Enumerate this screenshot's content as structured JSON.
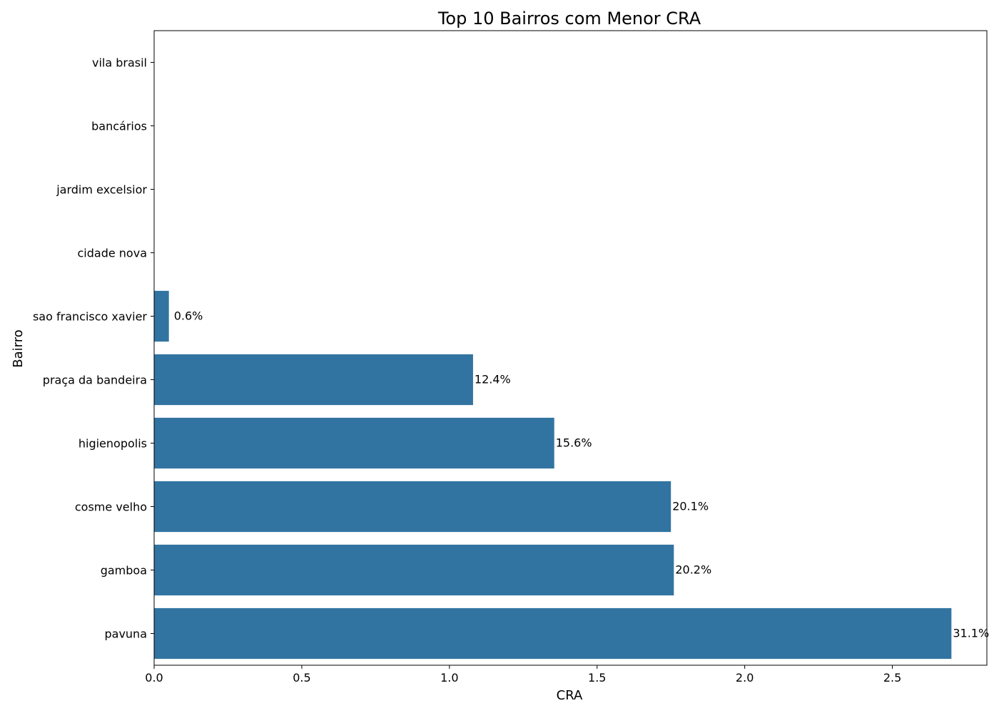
{
  "chart_data": {
    "type": "bar",
    "orientation": "horizontal",
    "title": "Top 10 Bairros com Menor CRA",
    "xlabel": "CRA",
    "ylabel": "Bairro",
    "xlim": [
      0,
      2.82
    ],
    "xticks": [
      "0.0",
      "0.5",
      "1.0",
      "1.5",
      "2.0",
      "2.5"
    ],
    "bar_color": "#3274a1",
    "grid": false,
    "legend": "none",
    "categories": [
      "vila brasil",
      "bancários",
      "jardim excelsior",
      "cidade nova",
      "sao francisco xavier",
      "praça da bandeira",
      "higienopolis",
      "cosme velho",
      "gamboa",
      "pavuna"
    ],
    "values": [
      0,
      0,
      0,
      0,
      0.05,
      1.08,
      1.355,
      1.75,
      1.76,
      2.7
    ],
    "data_labels": [
      "",
      "",
      "",
      "",
      "0.6%",
      "12.4%",
      "15.6%",
      "20.1%",
      "20.2%",
      "31.1%"
    ]
  }
}
